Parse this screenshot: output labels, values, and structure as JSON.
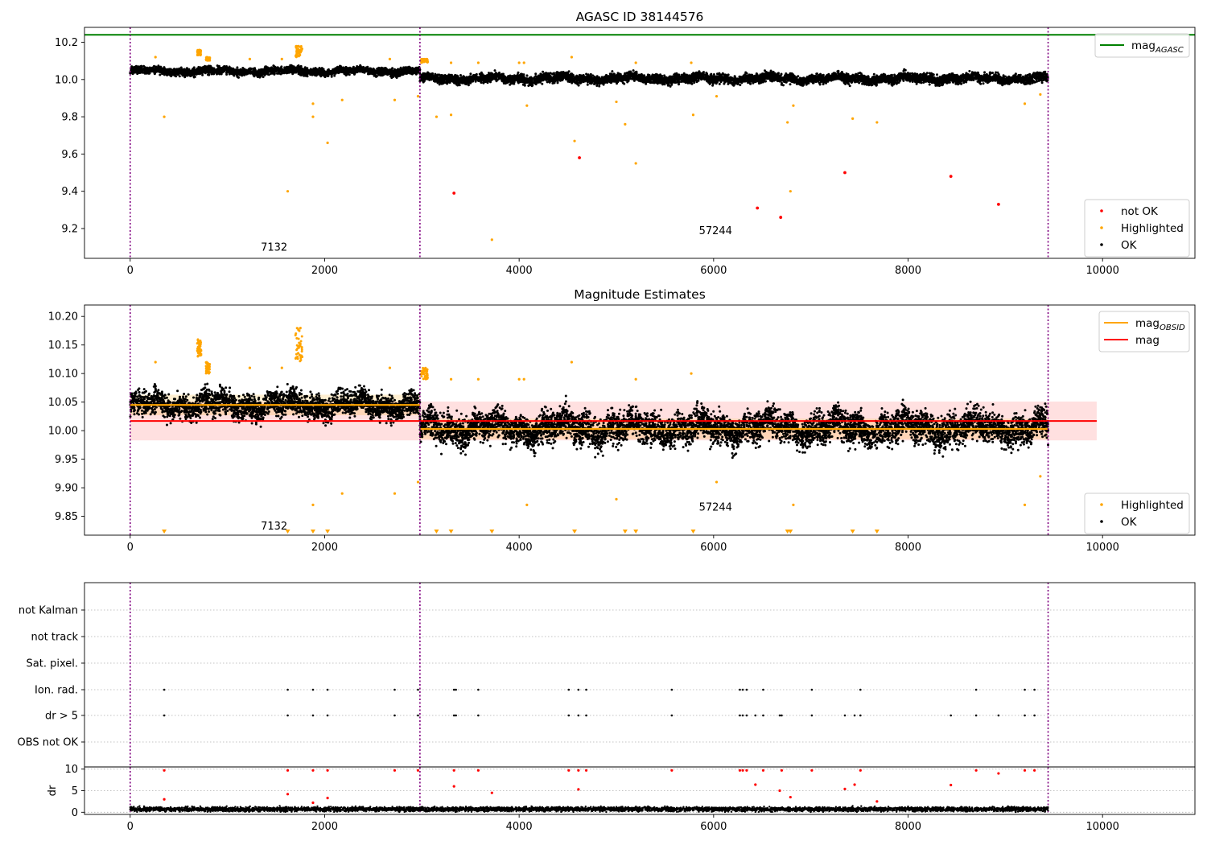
{
  "chart_data": [
    {
      "type": "scatter",
      "title": "AGASC ID 38144576",
      "xlim": [
        -470,
        10950
      ],
      "ylim": [
        9.04,
        10.28
      ],
      "x_ticks": [
        0,
        2000,
        4000,
        6000,
        8000,
        10000
      ],
      "y_ticks": [
        9.2,
        9.4,
        9.6,
        9.8,
        10.0,
        10.2
      ],
      "obs_boundaries": [
        0,
        2980,
        9440
      ],
      "obs_annotations": [
        {
          "text": "7132",
          "x": 1480,
          "y": 9.08
        },
        {
          "text": "57244",
          "x": 6020,
          "y": 9.17
        }
      ],
      "reference_lines": [
        {
          "name": "mag_AGASC",
          "y": 10.24,
          "color": "#008000"
        }
      ],
      "legend_upper": {
        "position": "upper right",
        "entries": [
          {
            "label": "mag",
            "subscript": "AGASC",
            "kind": "line",
            "color": "#008000"
          }
        ]
      },
      "legend_lower": {
        "position": "lower right",
        "entries": [
          {
            "label": "not OK",
            "kind": "point",
            "color": "#ff0000"
          },
          {
            "label": "Highlighted",
            "kind": "point",
            "color": "#ffa500"
          },
          {
            "label": "OK",
            "kind": "point",
            "color": "#000000"
          }
        ]
      },
      "series": [
        {
          "name": "OK",
          "color": "#000000",
          "description": "dense band of points",
          "segments": [
            {
              "x_range": [
                0,
                2980
              ],
              "mean": 10.045,
              "spread": 0.018
            },
            {
              "x_range": [
                2980,
                9440
              ],
              "mean": 10.005,
              "spread": 0.022
            }
          ]
        },
        {
          "name": "not OK",
          "color": "#ff0000",
          "points": [
            [
              3330,
              9.39
            ],
            [
              4620,
              9.58
            ],
            [
              6450,
              9.31
            ],
            [
              6690,
              9.26
            ],
            [
              7350,
              9.5
            ],
            [
              8440,
              9.48
            ],
            [
              8930,
              9.33
            ]
          ]
        },
        {
          "name": "Highlighted",
          "color": "#ffa500",
          "points": [
            [
              350,
              9.8
            ],
            [
              1620,
              9.4
            ],
            [
              1880,
              9.87
            ],
            [
              1880,
              9.8
            ],
            [
              2030,
              9.66
            ],
            [
              2180,
              9.89
            ],
            [
              2720,
              9.89
            ],
            [
              2960,
              9.91
            ],
            [
              3150,
              9.8
            ],
            [
              3300,
              9.81
            ],
            [
              3720,
              9.14
            ],
            [
              4080,
              9.86
            ],
            [
              4570,
              9.67
            ],
            [
              5000,
              9.88
            ],
            [
              5090,
              9.76
            ],
            [
              5200,
              9.55
            ],
            [
              5790,
              9.81
            ],
            [
              6030,
              9.91
            ],
            [
              6760,
              9.77
            ],
            [
              6790,
              9.4
            ],
            [
              6820,
              9.86
            ],
            [
              7430,
              9.79
            ],
            [
              7680,
              9.77
            ],
            [
              9200,
              9.87
            ],
            [
              9360,
              9.92
            ],
            [
              260,
              10.12
            ],
            [
              1230,
              10.11
            ],
            [
              1560,
              10.11
            ],
            [
              2670,
              10.11
            ],
            [
              3300,
              10.09
            ],
            [
              3580,
              10.09
            ],
            [
              4000,
              10.09
            ],
            [
              4050,
              10.09
            ],
            [
              4540,
              10.12
            ],
            [
              5200,
              10.09
            ],
            [
              5770,
              10.09
            ]
          ],
          "clusters": [
            {
              "x_range": [
                690,
                730
              ],
              "y_range": [
                10.13,
                10.16
              ]
            },
            {
              "x_range": [
                780,
                820
              ],
              "y_range": [
                10.1,
                10.12
              ]
            },
            {
              "x_range": [
                1700,
                1770
              ],
              "y_range": [
                10.12,
                10.18
              ]
            },
            {
              "x_range": [
                2990,
                3060
              ],
              "y_range": [
                10.09,
                10.11
              ]
            }
          ]
        }
      ]
    },
    {
      "type": "scatter",
      "title": "Magnitude Estimates",
      "xlim": [
        -470,
        10950
      ],
      "ylim": [
        9.817,
        10.22
      ],
      "x_ticks": [
        0,
        2000,
        4000,
        6000,
        8000,
        10000
      ],
      "y_ticks": [
        9.85,
        9.9,
        9.95,
        10.0,
        10.05,
        10.1,
        10.15,
        10.2
      ],
      "obs_boundaries": [
        0,
        2980,
        9440
      ],
      "obs_annotations": [
        {
          "text": "7132",
          "x": 1480,
          "y": 9.827
        },
        {
          "text": "57244",
          "x": 6020,
          "y": 9.86
        }
      ],
      "mag": {
        "value": 10.017,
        "band": [
          9.983,
          10.051
        ],
        "x_range": [
          0,
          9940
        ],
        "color": "#ff0000"
      },
      "mag_obsid": [
        {
          "x_range": [
            0,
            2980
          ],
          "value": 10.045,
          "band": [
            10.027,
            10.063
          ]
        },
        {
          "x_range": [
            2980,
            9440
          ],
          "value": 10.003,
          "band": [
            9.985,
            10.021
          ]
        }
      ],
      "legend_upper": {
        "position": "upper right",
        "entries": [
          {
            "label": "mag",
            "subscript": "OBSID",
            "kind": "line",
            "color": "#ffa500"
          },
          {
            "label": "mag",
            "subscript": "",
            "kind": "line",
            "color": "#ff0000"
          }
        ]
      },
      "legend_lower": {
        "position": "lower right",
        "entries": [
          {
            "label": "Highlighted",
            "kind": "point",
            "color": "#ffa500"
          },
          {
            "label": "OK",
            "kind": "point",
            "color": "#000000"
          }
        ]
      },
      "series": [
        {
          "name": "OK",
          "color": "#000000",
          "description": "dense band of points",
          "segments": [
            {
              "x_range": [
                0,
                2980
              ],
              "mean": 10.045,
              "spread": 0.02
            },
            {
              "x_range": [
                2980,
                9440
              ],
              "mean": 10.005,
              "spread": 0.025
            }
          ]
        },
        {
          "name": "Highlighted",
          "color": "#ffa500",
          "points": [
            [
              260,
              10.12
            ],
            [
              1230,
              10.11
            ],
            [
              1560,
              10.11
            ],
            [
              2670,
              10.11
            ],
            [
              3300,
              10.09
            ],
            [
              3580,
              10.09
            ],
            [
              4000,
              10.09
            ],
            [
              4050,
              10.09
            ],
            [
              4540,
              10.12
            ],
            [
              5200,
              10.09
            ],
            [
              5770,
              10.1
            ],
            [
              1880,
              9.87
            ],
            [
              2180,
              9.89
            ],
            [
              2720,
              9.89
            ],
            [
              2960,
              9.91
            ],
            [
              4080,
              9.87
            ],
            [
              5000,
              9.88
            ],
            [
              6030,
              9.91
            ],
            [
              6820,
              9.87
            ],
            [
              9200,
              9.87
            ],
            [
              9360,
              9.92
            ]
          ],
          "clusters": [
            {
              "x_range": [
                690,
                730
              ],
              "y_range": [
                10.13,
                10.16
              ]
            },
            {
              "x_range": [
                780,
                820
              ],
              "y_range": [
                10.1,
                10.12
              ]
            },
            {
              "x_range": [
                1700,
                1770
              ],
              "y_range": [
                10.12,
                10.18
              ]
            },
            {
              "x_range": [
                2990,
                3060
              ],
              "y_range": [
                10.09,
                10.11
              ]
            }
          ],
          "off_scale_below": [
            350,
            1620,
            1880,
            2030,
            3150,
            3300,
            3720,
            4570,
            5090,
            5200,
            5790,
            6760,
            6790,
            7430,
            7680
          ]
        }
      ]
    },
    {
      "type": "scatter",
      "title": "",
      "xlim": [
        -470,
        10950
      ],
      "x_ticks": [
        0,
        2000,
        4000,
        6000,
        8000,
        10000
      ],
      "obs_boundaries": [
        0,
        2980,
        9440
      ],
      "flag_rows": [
        "not Kalman",
        "not track",
        "Sat. pixel.",
        "Ion. rad.",
        "dr > 5",
        "OBS not OK"
      ],
      "flags": {
        "Ion. rad.": [
          350,
          1620,
          1880,
          2030,
          2720,
          2960,
          3330,
          3350,
          3580,
          4510,
          4610,
          4690,
          5570,
          6270,
          6300,
          6340,
          6510,
          7010,
          7510,
          8700,
          9200,
          9300
        ],
        "dr > 5": [
          350,
          1620,
          1880,
          2030,
          2720,
          2960,
          3330,
          3350,
          3580,
          4510,
          4610,
          4690,
          5570,
          6270,
          6300,
          6340,
          6430,
          6510,
          6680,
          6700,
          7010,
          7350,
          7450,
          7510,
          8440,
          8700,
          8930,
          9200,
          9300
        ]
      },
      "dr": {
        "ylabel": "dr",
        "ylim": [
          -0.5,
          10.5
        ],
        "y_ticks": [
          0,
          5,
          10
        ],
        "color": "#ff0000",
        "points": [
          [
            350,
            9.7
          ],
          [
            350,
            3.0
          ],
          [
            1620,
            9.7
          ],
          [
            1620,
            4.2
          ],
          [
            1880,
            9.7
          ],
          [
            1880,
            2.2
          ],
          [
            2030,
            9.7
          ],
          [
            2030,
            3.3
          ],
          [
            2720,
            9.7
          ],
          [
            2960,
            9.7
          ],
          [
            3330,
            9.7
          ],
          [
            3330,
            6.0
          ],
          [
            3580,
            9.7
          ],
          [
            3720,
            4.5
          ],
          [
            4510,
            9.7
          ],
          [
            4610,
            9.7
          ],
          [
            4610,
            5.3
          ],
          [
            4690,
            9.7
          ],
          [
            5570,
            9.7
          ],
          [
            6270,
            9.7
          ],
          [
            6300,
            9.7
          ],
          [
            6340,
            9.7
          ],
          [
            6430,
            6.4
          ],
          [
            6510,
            9.7
          ],
          [
            6680,
            5.0
          ],
          [
            6700,
            9.7
          ],
          [
            6790,
            3.5
          ],
          [
            7010,
            9.7
          ],
          [
            7350,
            5.4
          ],
          [
            7450,
            6.4
          ],
          [
            7510,
            9.7
          ],
          [
            7680,
            2.5
          ],
          [
            8440,
            6.3
          ],
          [
            8700,
            9.7
          ],
          [
            8930,
            9.0
          ],
          [
            9200,
            9.7
          ],
          [
            9300,
            9.7
          ]
        ],
        "baseline": {
          "x_range": [
            0,
            9440
          ],
          "mean": 0.7,
          "spread": 0.35,
          "color": "#000000"
        }
      }
    }
  ]
}
